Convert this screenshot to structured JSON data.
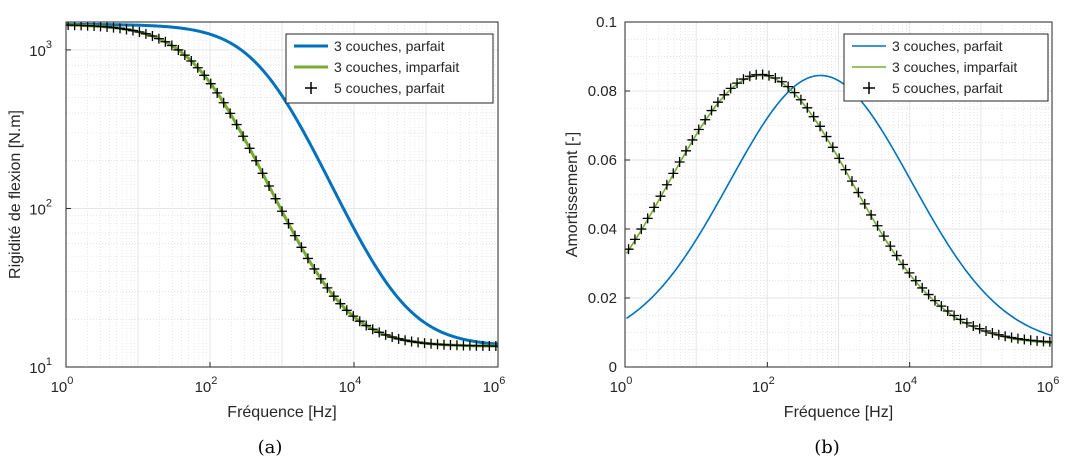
{
  "chart_data": [
    {
      "type": "line",
      "panel_label": "(a)",
      "xlabel": "Fréquence [Hz]",
      "ylabel": "Rigidité de flexion [N.m]",
      "xscale": "log",
      "yscale": "log",
      "xlim": [
        1,
        1000000
      ],
      "ylim": [
        10,
        1500
      ],
      "xticks": [
        {
          "value": 1,
          "base": "10",
          "exp": "0"
        },
        {
          "value": 100,
          "base": "10",
          "exp": "2"
        },
        {
          "value": 10000,
          "base": "10",
          "exp": "4"
        },
        {
          "value": 1000000,
          "base": "10",
          "exp": "6"
        }
      ],
      "yticks": [
        {
          "value": 10,
          "base": "10",
          "exp": "1"
        },
        {
          "value": 100,
          "base": "10",
          "exp": "2"
        },
        {
          "value": 1000,
          "base": "10",
          "exp": "3"
        }
      ],
      "grid": true,
      "legend_position": "top-right",
      "model": {
        "lo": 13.5,
        "hi": 1450,
        "ratio": 0.17
      },
      "series": [
        {
          "name": "3 couches, parfait",
          "style": "line",
          "color": "#0072bd",
          "width": 3,
          "fc": 560
        },
        {
          "name": "3 couches, imparfait",
          "style": "line",
          "color": "#77ac30",
          "width": 3,
          "fc": 75
        },
        {
          "name": "5 couches, parfait",
          "style": "plus",
          "color": "#000000",
          "fc": 75
        }
      ]
    },
    {
      "type": "line",
      "panel_label": "(b)",
      "xlabel": "Fréquence [Hz]",
      "ylabel": "Amortissement [-]",
      "xscale": "log",
      "yscale": "linear",
      "xlim": [
        1,
        1000000
      ],
      "ylim": [
        0,
        0.1
      ],
      "xticks": [
        {
          "value": 1,
          "base": "10",
          "exp": "0"
        },
        {
          "value": 100,
          "base": "10",
          "exp": "2"
        },
        {
          "value": 10000,
          "base": "10",
          "exp": "4"
        },
        {
          "value": 1000000,
          "base": "10",
          "exp": "6"
        }
      ],
      "yticks": [
        {
          "value": 0,
          "label": "0"
        },
        {
          "value": 0.02,
          "label": "0.02"
        },
        {
          "value": 0.04,
          "label": "0.04"
        },
        {
          "value": 0.06,
          "label": "0.06"
        },
        {
          "value": 0.08,
          "label": "0.08"
        },
        {
          "value": 0.1,
          "label": "0.1"
        }
      ],
      "grid": true,
      "legend_position": "top-right",
      "model": {
        "sigma": 1.28
      },
      "series": [
        {
          "name": "3 couches, parfait",
          "style": "line",
          "color": "#0072bd",
          "width": 1.6,
          "fc": 560,
          "base": 0.006,
          "peak": 0.0845
        },
        {
          "name": "3 couches, imparfait",
          "style": "line",
          "color": "#77ac30",
          "width": 1.6,
          "fc": 80,
          "base": 0.0065,
          "peak": 0.0845
        },
        {
          "name": "5 couches, parfait",
          "style": "plus",
          "color": "#000000",
          "fc": 80,
          "base": 0.0068,
          "peak": 0.0848
        }
      ]
    }
  ]
}
